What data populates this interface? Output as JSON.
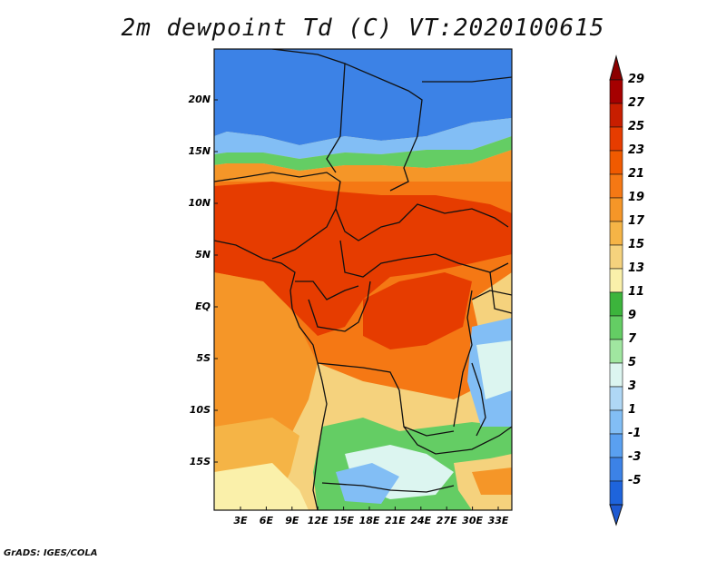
{
  "title": "2m dewpoint Td (C) VT:2020100615",
  "footer": "GrADS: IGES/COLA",
  "lat_labels": [
    "20N",
    "15N",
    "10N",
    "5N",
    "EQ",
    "5S",
    "10S",
    "15S"
  ],
  "lon_labels": [
    "3E",
    "6E",
    "9E",
    "12E",
    "15E",
    "18E",
    "21E",
    "24E",
    "27E",
    "30E",
    "33E"
  ],
  "colorbar": {
    "labels": [
      "29",
      "27",
      "25",
      "23",
      "21",
      "19",
      "17",
      "15",
      "13",
      "11",
      "9",
      "7",
      "5",
      "3",
      "1",
      "-1",
      "-3",
      "-5"
    ],
    "colors": [
      "#a50000",
      "#c81e00",
      "#e63c00",
      "#f05a00",
      "#f57814",
      "#f59628",
      "#f5b446",
      "#f5d27d",
      "#faf0aa",
      "#3cb43c",
      "#64cd64",
      "#a0e6a0",
      "#dcf5f0",
      "#afd7f5",
      "#82bef5",
      "#5aa0f0",
      "#3c82e6",
      "#1e64dc"
    ],
    "top_color": "#8c0000",
    "bottom_color": "#1e5ad2"
  },
  "map_colors": {
    "cold": "#3c82e6",
    "cool": "#82bef5",
    "light": "#dcf5f0",
    "green": "#64cd64",
    "pale": "#faf0aa",
    "yellow": "#f5d27d",
    "orange": "#f59628",
    "dorange": "#f57814",
    "red": "#e63c00",
    "border": "#111111"
  }
}
